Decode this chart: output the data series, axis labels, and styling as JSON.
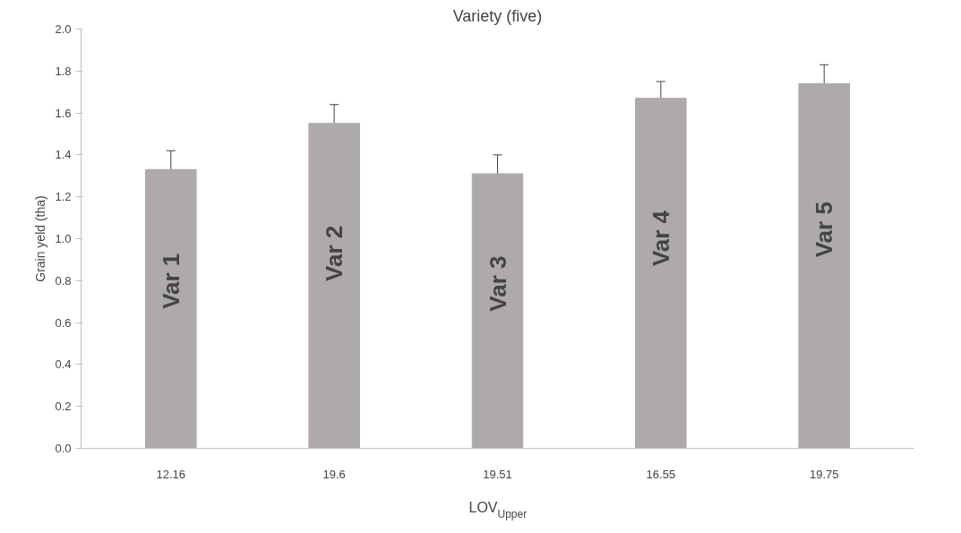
{
  "chart_data": {
    "type": "bar",
    "title": "Variety (five)",
    "xlabel": "LOV$_{Upper}$",
    "ylabel": "Grain yeld (tha)",
    "categories": [
      "12.16",
      "19.6",
      "19.51",
      "16.55",
      "19.75"
    ],
    "values": [
      1.33,
      1.55,
      1.31,
      1.67,
      1.74
    ],
    "errors": [
      0.09,
      0.09,
      0.09,
      0.08,
      0.09
    ],
    "color": "#aeaaaa",
    "ylim": [
      0,
      2
    ],
    "yticks": [
      {
        "value": 0,
        "label": "0.0"
      },
      {
        "value": 0.2,
        "label": "0.2"
      },
      {
        "value": 0.4,
        "label": "0.4"
      },
      {
        "value": 0.6,
        "label": "0.6"
      },
      {
        "value": 0.8,
        "label": "0.8"
      },
      {
        "value": 1,
        "label": "1.0"
      },
      {
        "value": 1.2,
        "label": "1.2"
      },
      {
        "value": 1.4,
        "label": "1.4"
      },
      {
        "value": 1.6,
        "label": "1.6"
      },
      {
        "value": 1.8,
        "label": "1.8"
      },
      {
        "value": 2,
        "label": "2.0"
      }
    ],
    "grid": false,
    "annotations": [
      "Var 1",
      "Var 2",
      "Var 3",
      "Var 4",
      "Var 5"
    ]
  }
}
